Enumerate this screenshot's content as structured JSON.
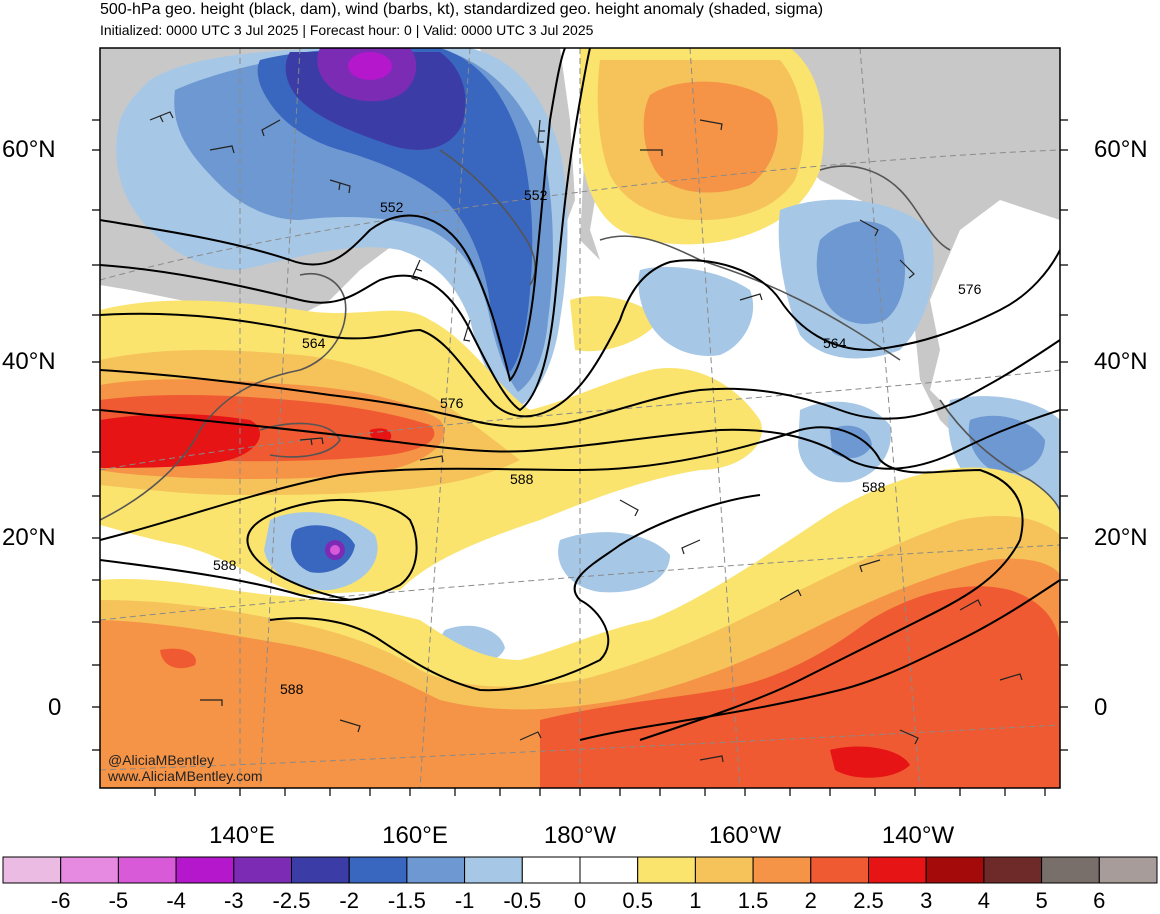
{
  "header": {
    "title": "500-hPa geo. height (black, dam), wind (barbs, kt), standardized geo. height anomaly (shaded, sigma)",
    "subtitle": "Initialized: 0000 UTC 3 Jul 2025 | Forecast hour: 0 | Valid: 0000 UTC 3 Jul 2025"
  },
  "axes": {
    "lat_left": [
      "60°N",
      "40°N",
      "20°N",
      "0"
    ],
    "lat_right": [
      "60°N",
      "40°N",
      "20°N",
      "0"
    ],
    "lon_bottom": [
      "140°E",
      "160°E",
      "180°W",
      "160°W",
      "140°W"
    ]
  },
  "contour_labels": [
    "552",
    "552",
    "564",
    "564",
    "576",
    "576",
    "588",
    "588",
    "588",
    "588"
  ],
  "credits": {
    "handle": "@AliciaMBentley",
    "site": "www.AliciaMBentley.com"
  },
  "colorbar": {
    "ticks": [
      "-6",
      "-5",
      "-4",
      "-3",
      "-2.5",
      "-2",
      "-1.5",
      "-1",
      "-0.5",
      "0",
      "0.5",
      "1",
      "1.5",
      "2",
      "2.5",
      "3",
      "4",
      "5",
      "6"
    ],
    "colors": [
      "#ebbbe4",
      "#e689e0",
      "#d85ad8",
      "#b417cc",
      "#7c2bb4",
      "#3c3ca6",
      "#3966be",
      "#6e98d2",
      "#a6c8e6",
      "#ffffff",
      "#ffffff",
      "#fae46e",
      "#f5c35a",
      "#f59446",
      "#f05a32",
      "#e61414",
      "#a50a0a",
      "#6e2a28",
      "#786e6a",
      "#a79c9a"
    ]
  },
  "colors": {
    "land_gray": "#c8c8c8",
    "contour": "#000000",
    "coast": "#555555"
  }
}
